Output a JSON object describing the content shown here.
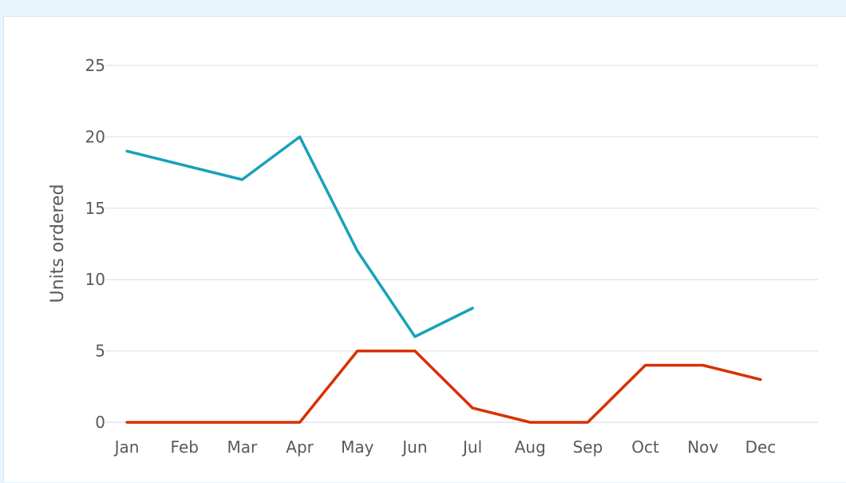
{
  "chart_data": {
    "type": "line",
    "title": "",
    "xlabel": "",
    "ylabel": "Units ordered",
    "categories": [
      "Jan",
      "Feb",
      "Mar",
      "Apr",
      "May",
      "Jun",
      "Jul",
      "Aug",
      "Sep",
      "Oct",
      "Nov",
      "Dec"
    ],
    "y_ticks": [
      "0",
      "5",
      "10",
      "15",
      "20",
      "25"
    ],
    "ylim": [
      0,
      25
    ],
    "grid": "horizontal",
    "legend": "none",
    "series": [
      {
        "color": "#17a2b8",
        "values": [
          19,
          18,
          17,
          20,
          12,
          6,
          8,
          null,
          null,
          null,
          null,
          null
        ]
      },
      {
        "color": "#d93000",
        "values": [
          0,
          0,
          0,
          0,
          5,
          5,
          1,
          0,
          0,
          4,
          4,
          3
        ]
      }
    ],
    "colors": {
      "grid": "#dddddd",
      "axis": "#ccd6eb",
      "text": "#595959"
    }
  }
}
